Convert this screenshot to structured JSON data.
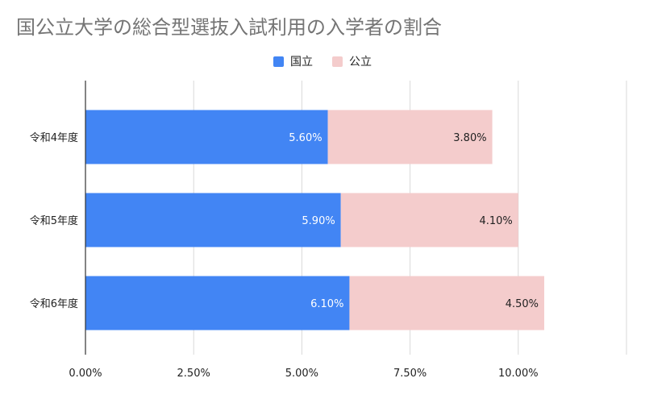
{
  "chart_data": {
    "type": "bar",
    "orientation": "horizontal",
    "stacked": true,
    "title": "国公立大学の総合型選抜入試利用の入学者の割合",
    "xlabel": "",
    "ylabel": "",
    "categories": [
      "令和4年度",
      "令和5年度",
      "令和6年度"
    ],
    "series": [
      {
        "name": "国立",
        "color": "#4285F4",
        "label_color": "#FFFFFF",
        "values": [
          5.6,
          5.9,
          6.1
        ],
        "labels": [
          "5.60%",
          "5.90%",
          "6.10%"
        ]
      },
      {
        "name": "公立",
        "color": "#F4CCCC",
        "label_color": "#222222",
        "values": [
          3.8,
          4.1,
          4.5
        ],
        "labels": [
          "3.80%",
          "4.10%",
          "4.50%"
        ]
      }
    ],
    "xlim": [
      0,
      12.5
    ],
    "xticks": [
      0,
      2.5,
      5,
      7.5,
      10,
      12.5
    ],
    "xtick_labels": [
      "0.00%",
      "2.50%",
      "5.00%",
      "7.50%",
      "10.00%",
      ""
    ],
    "grid": true,
    "legend_position": "top-center"
  }
}
